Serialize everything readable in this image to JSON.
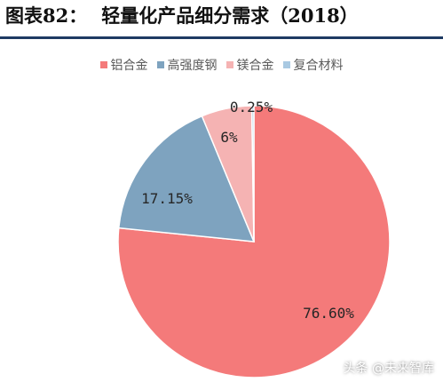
{
  "header": {
    "figure_label": "图表82：",
    "title": "轻量化产品细分需求（2018）"
  },
  "watermark": "头条 @未来智库",
  "chart_data": {
    "type": "pie",
    "title": "轻量化产品细分需求（2018）",
    "legend_position": "top",
    "start_angle_deg": 0,
    "direction": "clockwise",
    "slices": [
      {
        "name": "铝合金",
        "value": 76.6,
        "label": "76.60%",
        "color": "#f47a7a"
      },
      {
        "name": "高强度钢",
        "value": 17.15,
        "label": "17.15%",
        "color": "#7ea3bf"
      },
      {
        "name": "镁合金",
        "value": 6.0,
        "label": "6%",
        "color": "#f5b3b3"
      },
      {
        "name": "复合材料",
        "value": 0.25,
        "label": "0.25%",
        "color": "#a9c9e2"
      }
    ]
  }
}
